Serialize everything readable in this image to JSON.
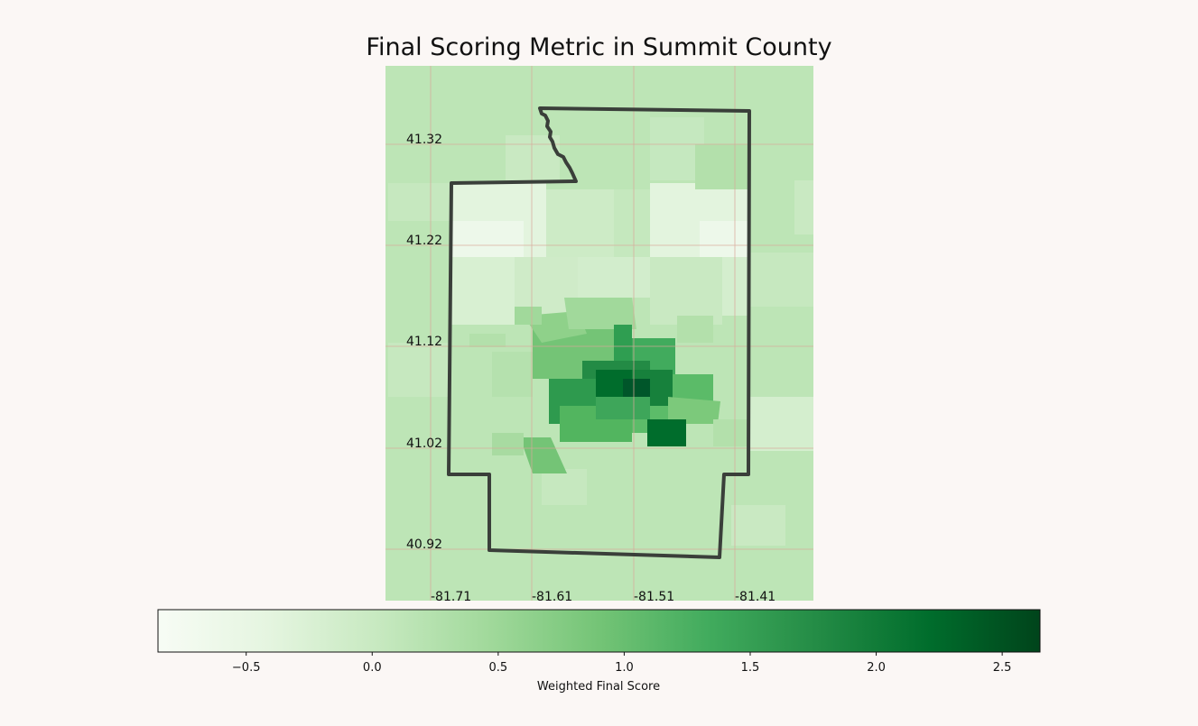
{
  "title": "Final Scoring Metric in Summit County",
  "chart_data": {
    "type": "heatmap",
    "title": "Final Scoring Metric in Summit County",
    "latitude_ticks": [
      "41.32",
      "41.22",
      "41.12",
      "41.02",
      "40.92"
    ],
    "longitude_ticks": [
      "-81.71",
      "-81.61",
      "-81.51",
      "-81.41"
    ],
    "grid": true,
    "colorbar": {
      "label": "Weighted Final Score",
      "orientation": "horizontal",
      "location": "bottom",
      "range": [
        -0.85,
        2.65
      ],
      "ticks": [
        -0.5,
        0.0,
        0.5,
        1.0,
        1.5,
        2.0,
        2.5
      ],
      "tick_labels": [
        "−0.5",
        "0.0",
        "0.5",
        "1.0",
        "1.5",
        "2.0",
        "2.5"
      ],
      "colormap": "Greens",
      "colors": [
        "#f7fcf5",
        "#e5f5e0",
        "#c7e9c0",
        "#a1d99b",
        "#74c476",
        "#41ab5d",
        "#238b45",
        "#006d2c",
        "#00441b"
      ]
    },
    "county_outline_color": "#3a3f3a",
    "grid_color": "#d9a89a"
  }
}
